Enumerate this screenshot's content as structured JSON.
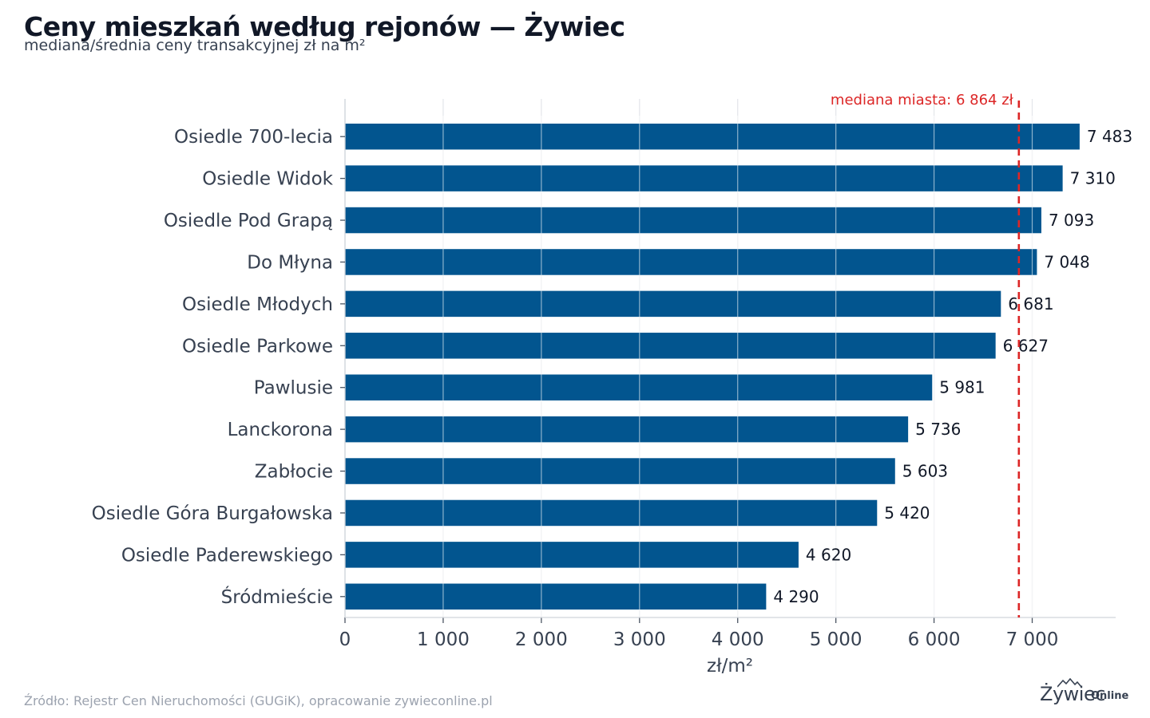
{
  "title": "Ceny mieszkań według rejonów — Żywiec",
  "subtitle": "mediana/średnia ceny transakcyjnej zł na m²",
  "source": "Źródło: Rejestr Cen Nieruchomości (GUGiK), opracowanie zywieconline.pl",
  "logo": {
    "brand": "Żywiec",
    "suffix": "Online"
  },
  "colors": {
    "bar": "#02558f",
    "reference": "#dc2626",
    "grid": "#e5e7eb"
  },
  "chart_data": {
    "type": "bar",
    "orientation": "horizontal",
    "title": "Ceny mieszkań według rejonów — Żywiec",
    "subtitle": "mediana/średnia ceny transakcyjnej zł na m²",
    "xlabel": "zł/m²",
    "ylabel": "",
    "xlim": [
      0,
      7850
    ],
    "xticks": [
      0,
      1000,
      2000,
      3000,
      4000,
      5000,
      6000,
      7000
    ],
    "xtick_labels": [
      "0",
      "1 000",
      "2 000",
      "3 000",
      "4 000",
      "5 000",
      "6 000",
      "7 000"
    ],
    "grid": "vertical",
    "categories": [
      "Osiedle 700-lecia",
      "Osiedle Widok",
      "Osiedle Pod Grapą",
      "Do Młyna",
      "Osiedle Młodych",
      "Osiedle Parkowe",
      "Pawlusie",
      "Lanckorona",
      "Zabłocie",
      "Osiedle Góra Burgałowska",
      "Osiedle Paderewskiego",
      "Śródmieście"
    ],
    "values": [
      7483,
      7310,
      7093,
      7048,
      6681,
      6627,
      5981,
      5736,
      5603,
      5420,
      4620,
      4290
    ],
    "value_labels": [
      "7 483",
      "7 310",
      "7 093",
      "7 048",
      "6 681",
      "6 627",
      "5 981",
      "5 736",
      "5 603",
      "5 420",
      "4 620",
      "4 290"
    ],
    "reference_line": {
      "value": 6864,
      "label": "mediana miasta: 6 864 zł",
      "style": "dashed"
    }
  }
}
